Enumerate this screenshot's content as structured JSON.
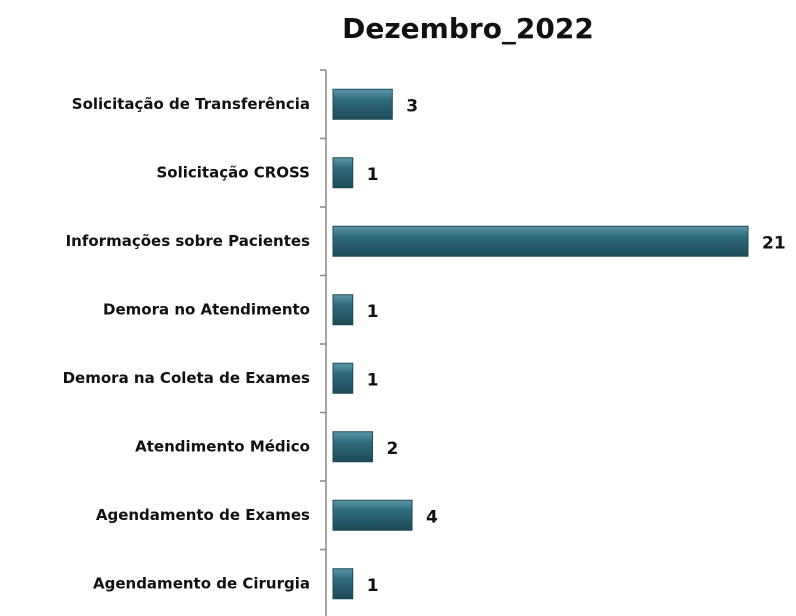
{
  "chart_data": {
    "type": "bar",
    "orientation": "horizontal",
    "title": "Dezembro_2022",
    "categories": [
      "Solicitação de Transferência",
      "Solicitação CROSS",
      "Informações sobre Pacientes",
      "Demora no Atendimento",
      "Demora na Coleta de Exames",
      "Atendimento Médico",
      "Agendamento de Exames",
      "Agendamento de Cirurgia"
    ],
    "values": [
      3,
      1,
      21,
      1,
      1,
      2,
      4,
      1
    ],
    "color": "#2f6b7c"
  }
}
